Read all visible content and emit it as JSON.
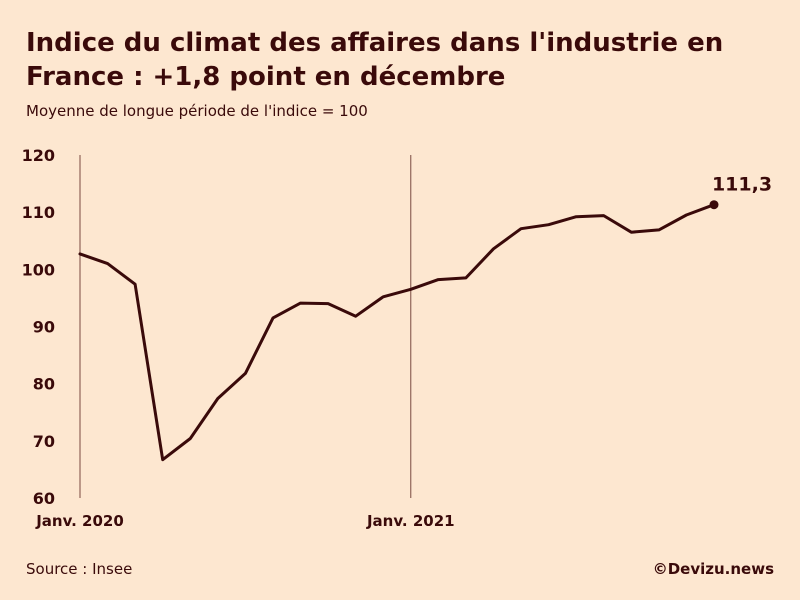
{
  "header": {
    "title": "Indice du climat des affaires dans l'industrie en France : +1,8 point en décembre",
    "subtitle": "Moyenne de longue période de l'indice = 100"
  },
  "footer": {
    "source": "Source : Insee",
    "brand": "©Devizu.news"
  },
  "chart_data": {
    "type": "line",
    "title": "Indice du climat des affaires dans l'industrie en France : +1,8 point en décembre",
    "subtitle": "Moyenne de longue période de l'indice = 100",
    "xlabel": "",
    "ylabel": "",
    "ylim": [
      60,
      120
    ],
    "yticks": [
      60,
      70,
      80,
      90,
      100,
      110,
      120
    ],
    "grid": false,
    "x_tick_labels": [
      {
        "label": "Janv. 2020",
        "date": "2020-01"
      },
      {
        "label": "Janv. 2021",
        "date": "2021-01"
      }
    ],
    "x": [
      "2020-01",
      "2020-02",
      "2020-03",
      "2020-04",
      "2020-05",
      "2020-06",
      "2020-07",
      "2020-08",
      "2020-09",
      "2020-10",
      "2020-11",
      "2020-12",
      "2021-01",
      "2021-02",
      "2021-03",
      "2021-04",
      "2021-05",
      "2021-06",
      "2021-07",
      "2021-08",
      "2021-09",
      "2021-10",
      "2021-11",
      "2021-12"
    ],
    "series": [
      {
        "values": [
          102.7,
          101.0,
          97.4,
          66.7,
          70.4,
          77.4,
          81.8,
          91.5,
          94.1,
          94.0,
          91.8,
          95.2,
          96.5,
          98.2,
          98.5,
          103.6,
          107.1,
          107.8,
          109.2,
          109.4,
          106.5,
          106.9,
          109.5,
          111.3
        ],
        "color": "#3a0a0a"
      }
    ],
    "annotations": [
      {
        "text": "111,3",
        "x": "2021-12",
        "y": 111.3
      }
    ]
  }
}
